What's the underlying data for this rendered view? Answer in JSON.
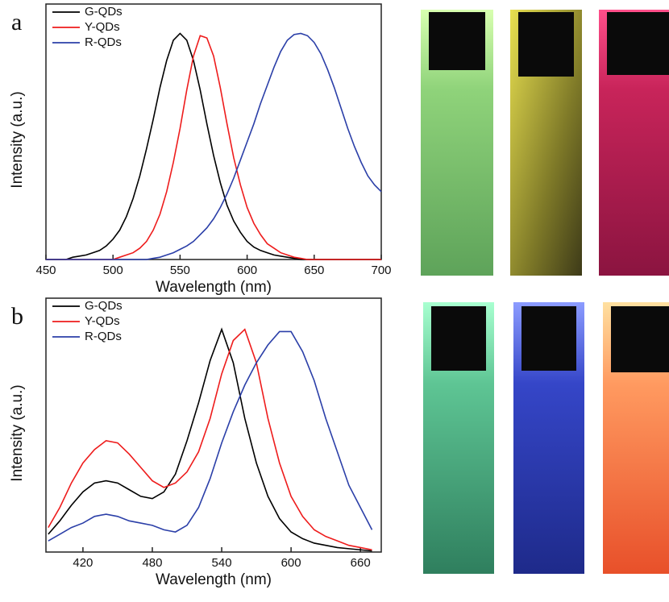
{
  "chart_data": [
    {
      "type": "line",
      "panel_label": "a",
      "xlabel": "Wavelength (nm)",
      "ylabel": "Intensity (a.u.)",
      "x": [
        450,
        455,
        460,
        465,
        470,
        475,
        480,
        485,
        490,
        495,
        500,
        505,
        510,
        515,
        520,
        525,
        530,
        535,
        540,
        545,
        550,
        555,
        560,
        565,
        570,
        575,
        580,
        585,
        590,
        595,
        600,
        605,
        610,
        615,
        620,
        625,
        630,
        635,
        640,
        645,
        650,
        655,
        660,
        665,
        670,
        675,
        680,
        685,
        690,
        695,
        700
      ],
      "series": [
        {
          "name": "G-QDs",
          "color": "#000000",
          "values": [
            0,
            0,
            0,
            0,
            0.01,
            0.015,
            0.02,
            0.03,
            0.04,
            0.06,
            0.09,
            0.13,
            0.19,
            0.27,
            0.37,
            0.49,
            0.62,
            0.76,
            0.88,
            0.97,
            1.0,
            0.97,
            0.88,
            0.75,
            0.6,
            0.46,
            0.34,
            0.24,
            0.17,
            0.12,
            0.08,
            0.055,
            0.04,
            0.03,
            0.02,
            0.015,
            0.01,
            0.005,
            0,
            0,
            0,
            0,
            0,
            0,
            0,
            0,
            0,
            0,
            0,
            0,
            0
          ]
        },
        {
          "name": "Y-QDs",
          "color": "#ee1c1c",
          "values": [
            0,
            0,
            0,
            0,
            0,
            0,
            0,
            0,
            0,
            0,
            0,
            0.01,
            0.02,
            0.03,
            0.05,
            0.08,
            0.13,
            0.2,
            0.3,
            0.43,
            0.58,
            0.75,
            0.9,
            0.99,
            0.98,
            0.9,
            0.76,
            0.6,
            0.45,
            0.33,
            0.23,
            0.16,
            0.11,
            0.07,
            0.05,
            0.03,
            0.02,
            0.01,
            0.005,
            0,
            0,
            0,
            0,
            0,
            0,
            0,
            0,
            0,
            0,
            0,
            0
          ]
        },
        {
          "name": "R-QDs",
          "color": "#2b3fa8",
          "values": [
            0,
            0,
            0,
            0,
            0,
            0,
            0,
            0,
            0,
            0,
            0,
            0,
            0,
            0,
            0,
            0,
            0.005,
            0.01,
            0.02,
            0.03,
            0.045,
            0.06,
            0.08,
            0.11,
            0.14,
            0.18,
            0.23,
            0.29,
            0.36,
            0.44,
            0.52,
            0.6,
            0.69,
            0.77,
            0.85,
            0.92,
            0.97,
            0.995,
            1.0,
            0.99,
            0.96,
            0.91,
            0.84,
            0.76,
            0.67,
            0.58,
            0.5,
            0.43,
            0.37,
            0.33,
            0.3
          ]
        }
      ],
      "xlim": [
        450,
        700
      ],
      "xticks": [
        450,
        500,
        550,
        600,
        650,
        700
      ],
      "ylim": [
        0,
        1.13
      ],
      "legend": "upper-left"
    },
    {
      "type": "line",
      "panel_label": "b",
      "xlabel": "Wavelength (nm)",
      "ylabel": "Intensity (a.u.)",
      "x": [
        390,
        400,
        410,
        420,
        430,
        440,
        450,
        460,
        470,
        480,
        490,
        500,
        510,
        520,
        530,
        540,
        550,
        560,
        570,
        580,
        590,
        600,
        610,
        620,
        630,
        640,
        650,
        660,
        670
      ],
      "series": [
        {
          "name": "G-QDs",
          "color": "#000000",
          "values": [
            0.08,
            0.14,
            0.21,
            0.27,
            0.31,
            0.32,
            0.31,
            0.28,
            0.25,
            0.24,
            0.27,
            0.35,
            0.5,
            0.67,
            0.86,
            1.0,
            0.85,
            0.6,
            0.4,
            0.25,
            0.15,
            0.09,
            0.06,
            0.04,
            0.03,
            0.02,
            0.015,
            0.01,
            0.005
          ]
        },
        {
          "name": "Y-QDs",
          "color": "#ee1c1c",
          "values": [
            0.11,
            0.2,
            0.31,
            0.4,
            0.46,
            0.5,
            0.49,
            0.44,
            0.38,
            0.32,
            0.29,
            0.31,
            0.36,
            0.45,
            0.6,
            0.8,
            0.95,
            1.0,
            0.85,
            0.6,
            0.4,
            0.25,
            0.16,
            0.1,
            0.07,
            0.05,
            0.03,
            0.02,
            0.01
          ]
        },
        {
          "name": "R-QDs",
          "color": "#2b3fa8",
          "values": [
            0.05,
            0.08,
            0.11,
            0.13,
            0.16,
            0.17,
            0.16,
            0.14,
            0.13,
            0.12,
            0.1,
            0.09,
            0.12,
            0.2,
            0.33,
            0.49,
            0.63,
            0.75,
            0.85,
            0.93,
            0.99,
            0.99,
            0.9,
            0.77,
            0.6,
            0.45,
            0.3,
            0.2,
            0.1
          ]
        }
      ],
      "xlim": [
        388,
        678
      ],
      "xticks": [
        420,
        480,
        540,
        600,
        660
      ],
      "ylim": [
        0,
        1.14
      ],
      "legend": "upper-left"
    }
  ]
}
